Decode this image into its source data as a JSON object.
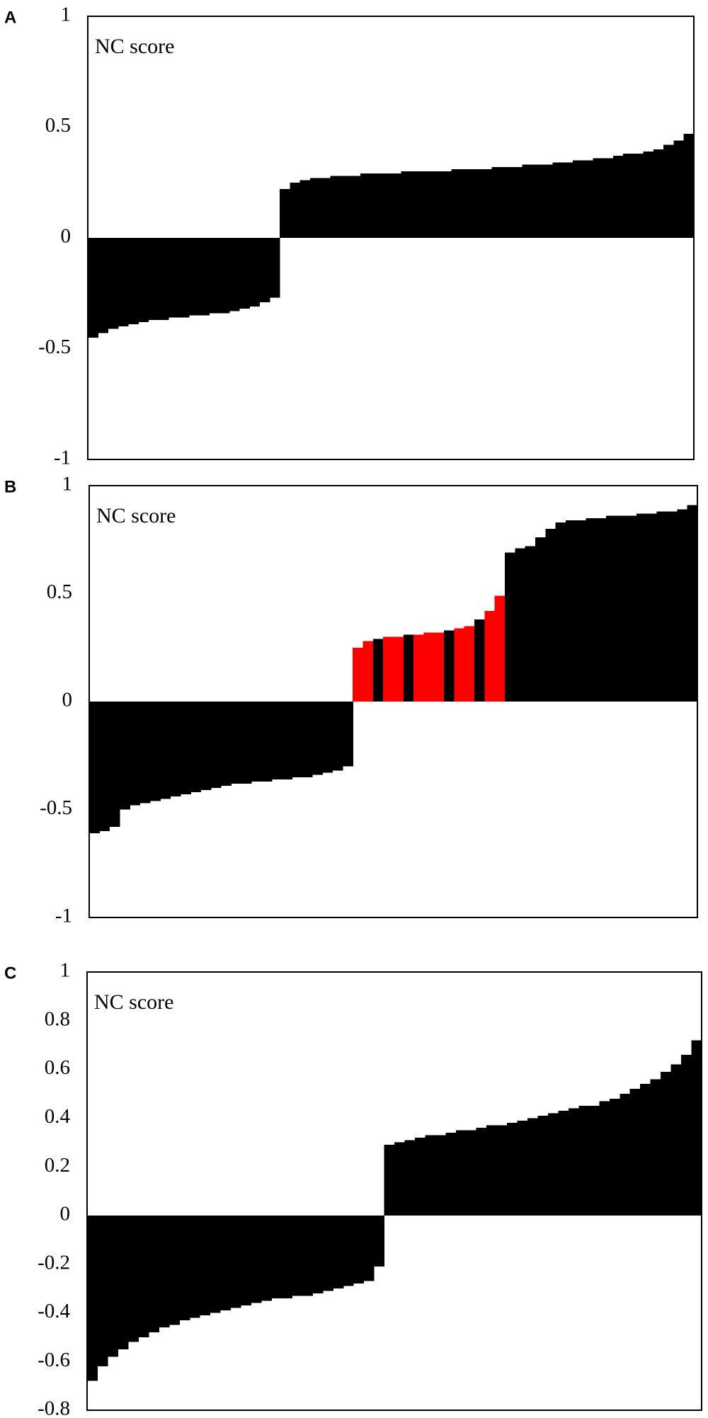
{
  "chart_data": [
    {
      "type": "bar",
      "panel_label": "A",
      "annotation": "NC score",
      "ylim": [
        -1,
        1
      ],
      "yticks": [
        -1,
        -0.5,
        0,
        0.5,
        1
      ],
      "color": "#000000",
      "values": [
        -0.45,
        -0.43,
        -0.41,
        -0.4,
        -0.39,
        -0.38,
        -0.37,
        -0.37,
        -0.36,
        -0.36,
        -0.35,
        -0.35,
        -0.34,
        -0.34,
        -0.33,
        -0.32,
        -0.31,
        -0.29,
        -0.27,
        0.22,
        0.25,
        0.26,
        0.27,
        0.27,
        0.28,
        0.28,
        0.28,
        0.29,
        0.29,
        0.29,
        0.29,
        0.3,
        0.3,
        0.3,
        0.3,
        0.3,
        0.31,
        0.31,
        0.31,
        0.31,
        0.32,
        0.32,
        0.32,
        0.33,
        0.33,
        0.33,
        0.34,
        0.34,
        0.35,
        0.35,
        0.36,
        0.36,
        0.37,
        0.38,
        0.38,
        0.39,
        0.4,
        0.42,
        0.44,
        0.47
      ]
    },
    {
      "type": "bar",
      "panel_label": "B",
      "annotation": "NC score",
      "ylim": [
        -1,
        1
      ],
      "yticks": [
        -1,
        -0.5,
        0,
        0.5,
        1
      ],
      "color": "#000000",
      "values": [
        -0.61,
        -0.6,
        -0.58,
        -0.5,
        -0.48,
        -0.47,
        -0.46,
        -0.45,
        -0.44,
        -0.43,
        -0.42,
        -0.41,
        -0.4,
        -0.39,
        -0.38,
        -0.38,
        -0.37,
        -0.37,
        -0.36,
        -0.36,
        -0.35,
        -0.35,
        -0.34,
        -0.33,
        -0.32,
        -0.3,
        0.25,
        0.28,
        0.29,
        0.3,
        0.3,
        0.31,
        0.31,
        0.32,
        0.32,
        0.33,
        0.34,
        0.35,
        0.38,
        0.42,
        0.49,
        0.69,
        0.71,
        0.72,
        0.76,
        0.8,
        0.83,
        0.84,
        0.84,
        0.85,
        0.85,
        0.86,
        0.86,
        0.86,
        0.87,
        0.87,
        0.88,
        0.88,
        0.89,
        0.91
      ],
      "colors": [
        "#000000",
        "#000000",
        "#000000",
        "#000000",
        "#000000",
        "#000000",
        "#000000",
        "#000000",
        "#000000",
        "#000000",
        "#000000",
        "#000000",
        "#000000",
        "#000000",
        "#000000",
        "#000000",
        "#000000",
        "#000000",
        "#000000",
        "#000000",
        "#000000",
        "#000000",
        "#000000",
        "#000000",
        "#000000",
        "#000000",
        "#ff0000",
        "#ff0000",
        "#000000",
        "#ff0000",
        "#ff0000",
        "#000000",
        "#ff0000",
        "#ff0000",
        "#ff0000",
        "#000000",
        "#ff0000",
        "#ff0000",
        "#000000",
        "#ff0000",
        "#ff0000",
        "#000000",
        "#000000",
        "#000000",
        "#000000",
        "#000000",
        "#000000",
        "#000000",
        "#000000",
        "#000000",
        "#000000",
        "#000000",
        "#000000",
        "#000000",
        "#000000",
        "#000000",
        "#000000",
        "#000000",
        "#000000",
        "#000000"
      ]
    },
    {
      "type": "bar",
      "panel_label": "C",
      "annotation": "NC score",
      "ylim": [
        -0.8,
        1
      ],
      "yticks": [
        -0.8,
        -0.6,
        -0.4,
        -0.2,
        0,
        0.2,
        0.4,
        0.6,
        0.8,
        1
      ],
      "color": "#000000",
      "values": [
        -0.68,
        -0.62,
        -0.58,
        -0.55,
        -0.52,
        -0.5,
        -0.48,
        -0.46,
        -0.45,
        -0.43,
        -0.42,
        -0.41,
        -0.4,
        -0.39,
        -0.38,
        -0.37,
        -0.36,
        -0.35,
        -0.34,
        -0.34,
        -0.33,
        -0.33,
        -0.32,
        -0.31,
        -0.3,
        -0.29,
        -0.28,
        -0.27,
        -0.21,
        0.29,
        0.3,
        0.31,
        0.32,
        0.33,
        0.33,
        0.34,
        0.35,
        0.35,
        0.36,
        0.37,
        0.37,
        0.38,
        0.39,
        0.4,
        0.41,
        0.42,
        0.43,
        0.44,
        0.45,
        0.45,
        0.47,
        0.48,
        0.5,
        0.52,
        0.54,
        0.56,
        0.59,
        0.62,
        0.66,
        0.72
      ]
    }
  ]
}
